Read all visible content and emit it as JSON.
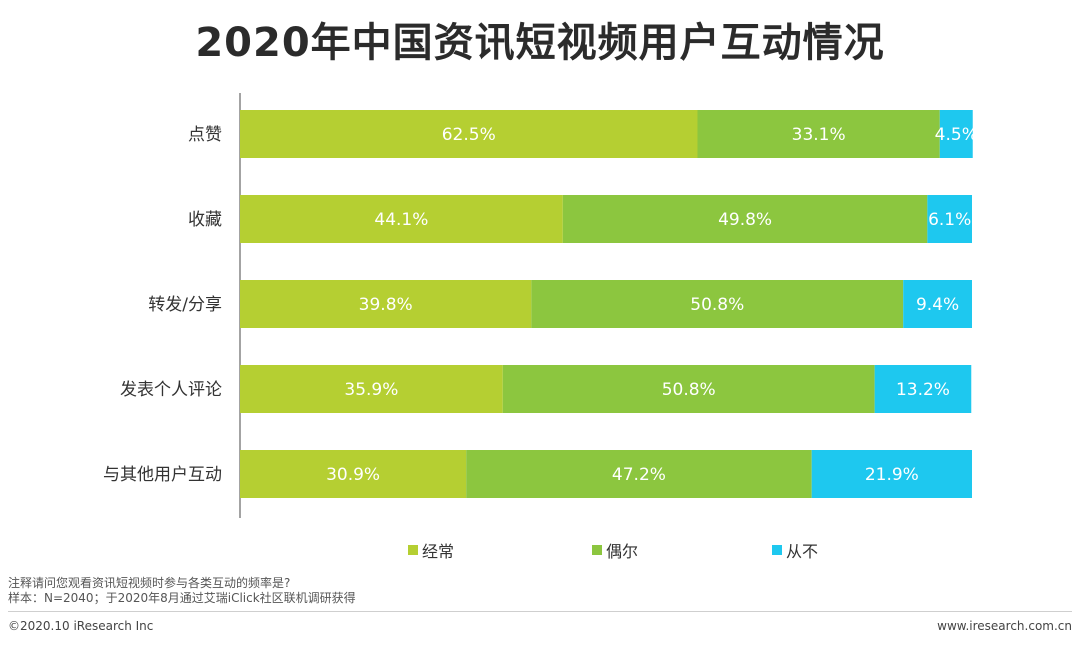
{
  "page": {
    "title": "2020年中国资讯短视频用户互动情况",
    "note_line1": "注释请问您观看资讯短视频时参与各类互动的频率是?",
    "note_line2": "样本：N=2040；于2020年8月通过艾瑞iClick社区联机调研获得",
    "copyright": "©2020.10 iResearch Inc",
    "website": "www.iresearch.com.cn"
  },
  "colors": {
    "often": "#b5cf32",
    "sometimes": "#8cc63f",
    "never": "#1ec8ef",
    "axis": "#666666",
    "label_text": "#ffffff"
  },
  "chart_data": {
    "type": "bar",
    "orientation": "horizontal",
    "stacked": true,
    "title": "2020年中国资讯短视频用户互动情况",
    "categories": [
      "点赞",
      "收藏",
      "转发/分享",
      "发表个人评论",
      "与其他用户互动"
    ],
    "series": [
      {
        "name": "经常",
        "color_key": "often",
        "values": [
          62.5,
          44.1,
          39.8,
          35.9,
          30.9
        ]
      },
      {
        "name": "偶尔",
        "color_key": "sometimes",
        "values": [
          33.1,
          49.8,
          50.8,
          50.8,
          47.2
        ]
      },
      {
        "name": "从不",
        "color_key": "never",
        "values": [
          4.5,
          6.1,
          9.4,
          13.2,
          21.9
        ]
      }
    ],
    "value_suffix": "%",
    "xlim": [
      0,
      100
    ],
    "xlabel": "",
    "ylabel": "",
    "grid": false,
    "legend": "bottom"
  }
}
